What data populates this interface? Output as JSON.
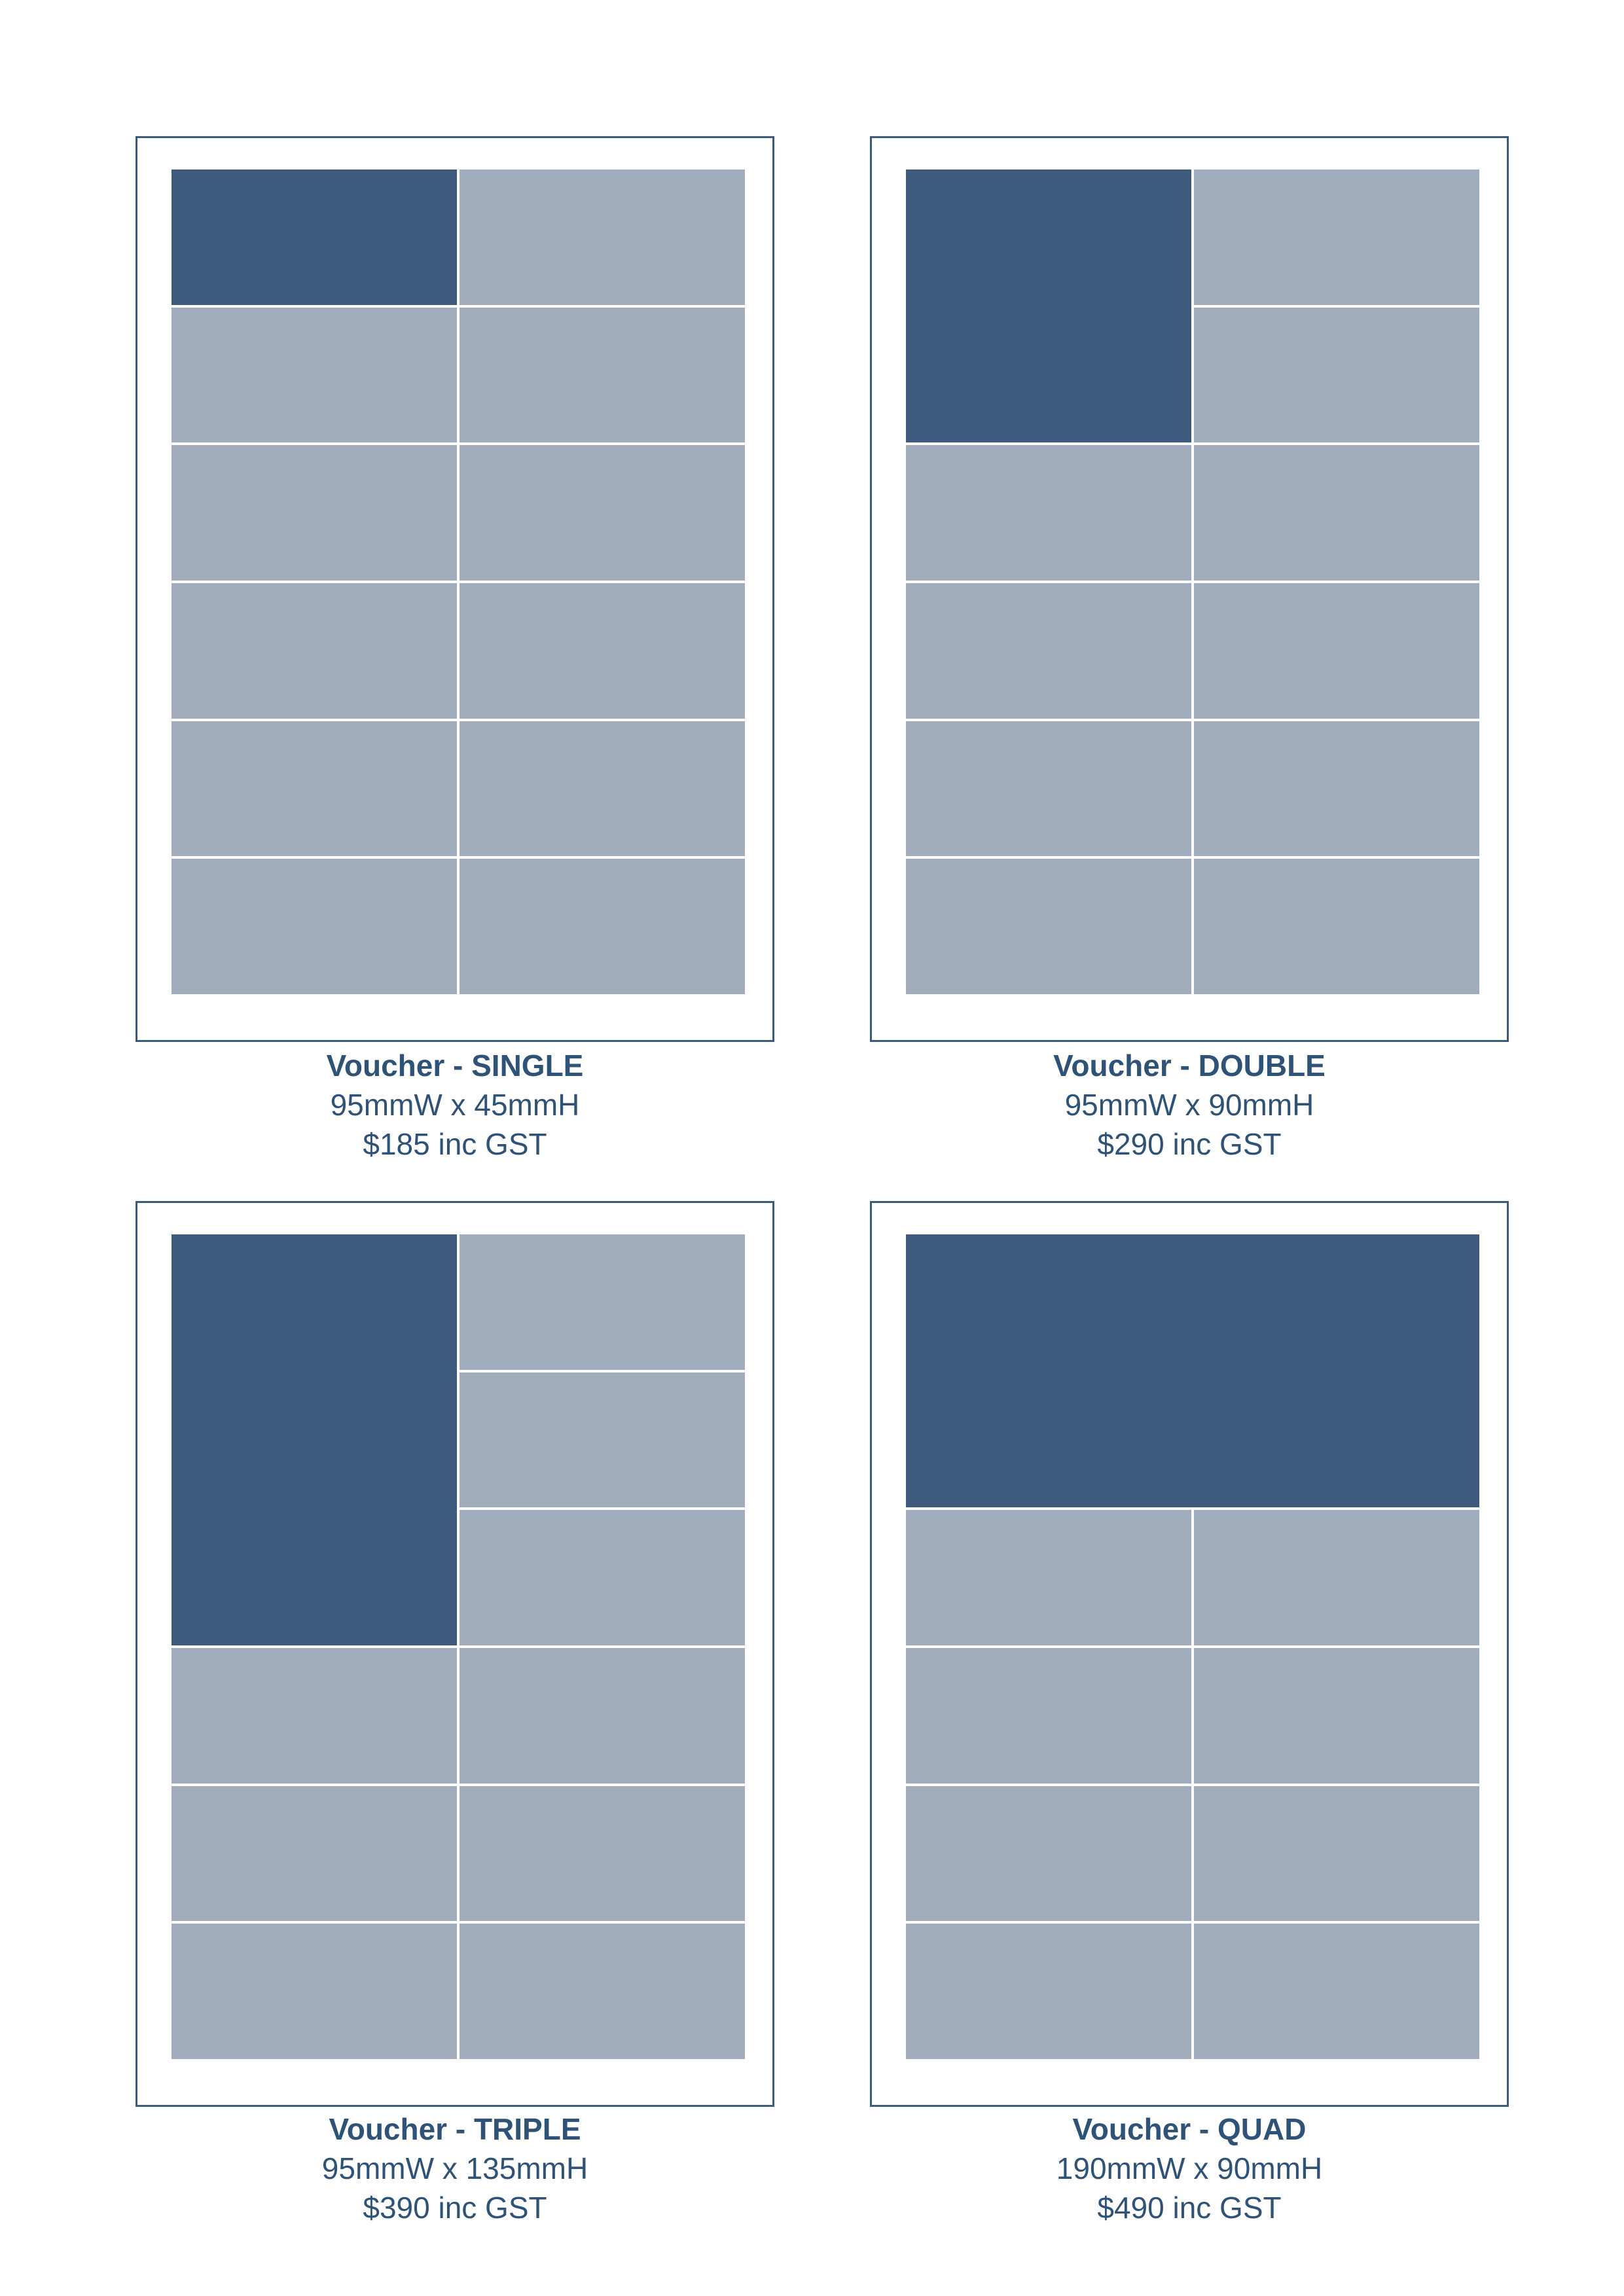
{
  "colors": {
    "panel_border": "#3c5a7e",
    "cell_light": "#a1adbd",
    "cell_dark": "#3d5a7c",
    "text": "#2f5277"
  },
  "vouchers": [
    {
      "title": "Voucher - SINGLE",
      "size": "95mmW x 45mmH",
      "price": "$185 inc GST",
      "grid": {
        "columns": 2,
        "rows": 6,
        "highlight_columns": 1,
        "highlight_rows": 1
      }
    },
    {
      "title": "Voucher - DOUBLE",
      "size": "95mmW x 90mmH",
      "price": "$290 inc GST",
      "grid": {
        "columns": 2,
        "rows": 6,
        "highlight_columns": 1,
        "highlight_rows": 2
      }
    },
    {
      "title": "Voucher - TRIPLE",
      "size": "95mmW x 135mmH",
      "price": "$390 inc GST",
      "grid": {
        "columns": 2,
        "rows": 6,
        "highlight_columns": 1,
        "highlight_rows": 3
      }
    },
    {
      "title": "Voucher - QUAD",
      "size": "190mmW x 90mmH",
      "price": "$490 inc GST",
      "grid": {
        "columns": 2,
        "rows": 6,
        "highlight_columns": 2,
        "highlight_rows": 2
      }
    }
  ]
}
